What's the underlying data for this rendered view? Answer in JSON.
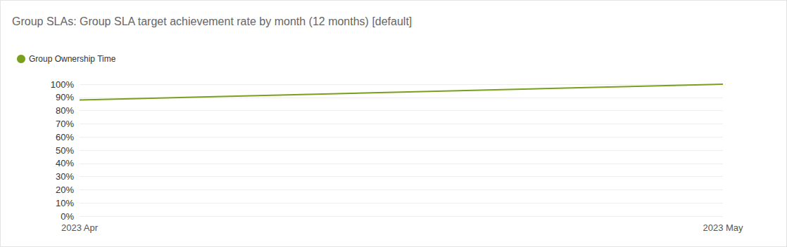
{
  "chart_data": {
    "type": "line",
    "title": "Group SLAs: Group SLA target achievement rate by month (12 months) [default]",
    "categories": [
      "2023 Apr",
      "2023 May"
    ],
    "series": [
      {
        "name": "Group Ownership Time",
        "color": "#78a01c",
        "values": [
          88,
          100
        ]
      }
    ],
    "ylim": [
      0,
      100
    ],
    "yticks": [
      {
        "value": 0,
        "label": "0%"
      },
      {
        "value": 10,
        "label": "10%"
      },
      {
        "value": 20,
        "label": "20%"
      },
      {
        "value": 30,
        "label": "30%"
      },
      {
        "value": 40,
        "label": "40%"
      },
      {
        "value": 50,
        "label": "50%"
      },
      {
        "value": 60,
        "label": "60%"
      },
      {
        "value": 70,
        "label": "70%"
      },
      {
        "value": 80,
        "label": "80%"
      },
      {
        "value": 90,
        "label": "90%"
      },
      {
        "value": 100,
        "label": "100%"
      }
    ],
    "grid": true,
    "legend": "top-left",
    "marker": "none"
  }
}
